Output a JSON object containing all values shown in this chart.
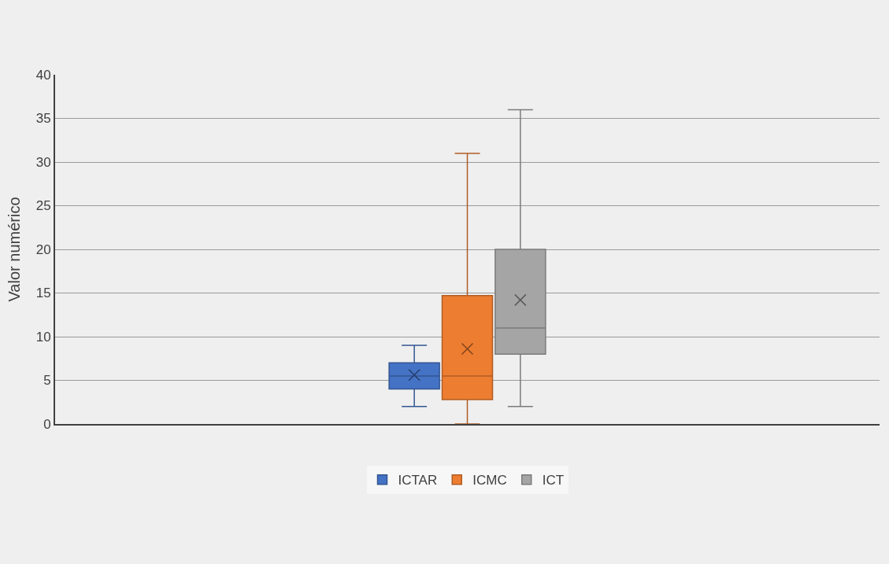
{
  "chart_data": {
    "type": "box",
    "ylabel": "Valor numérico",
    "categories": [
      null
    ],
    "ylim": [
      0,
      40
    ],
    "yticks": [
      0,
      5,
      10,
      15,
      20,
      25,
      30,
      35,
      40
    ],
    "grid": "y",
    "legend": "bottom",
    "series": [
      {
        "name": "ICTAR",
        "color": "#4472c4",
        "boxes": [
          {
            "low": 2,
            "q1": 4,
            "median": 5.5,
            "q3": 7,
            "high": 9,
            "mean": 5.6
          }
        ]
      },
      {
        "name": "ICMC",
        "color": "#ed7d31",
        "boxes": [
          {
            "low": 0,
            "q1": 2.8,
            "median": 5.5,
            "q3": 14.7,
            "high": 31,
            "mean": 8.6
          }
        ]
      },
      {
        "name": "ICT",
        "color": "#a5a5a5",
        "boxes": [
          {
            "low": 2,
            "q1": 8,
            "median": 11,
            "q3": 20,
            "high": 36,
            "mean": 14.2
          }
        ]
      }
    ]
  }
}
